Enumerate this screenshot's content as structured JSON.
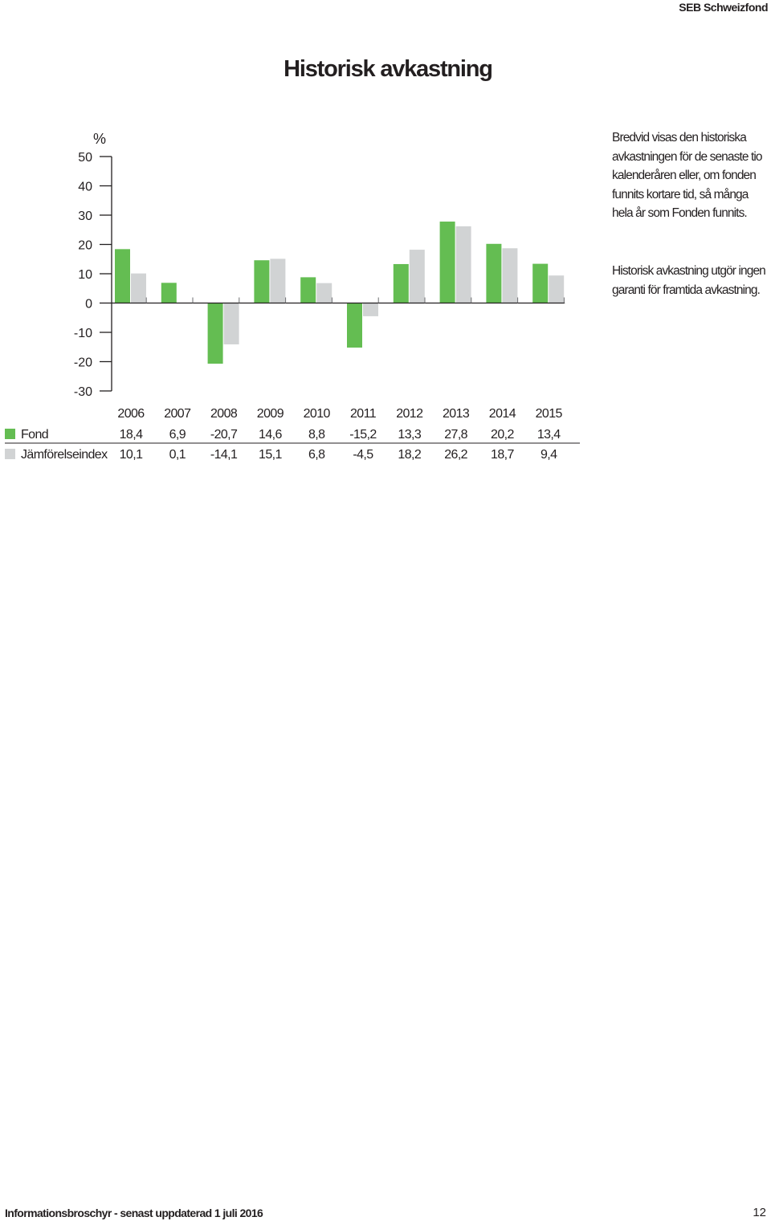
{
  "header": {
    "brand": "SEB Schweizfond"
  },
  "title": "Historisk avkastning",
  "colors": {
    "fund": "#64bd52",
    "index": "#d1d3d4",
    "text": "#231f20",
    "axis": "#231f20"
  },
  "chart_data": {
    "type": "bar",
    "unit_label": "%",
    "categories": [
      "2006",
      "2007",
      "2008",
      "2009",
      "2010",
      "2011",
      "2012",
      "2013",
      "2014",
      "2015"
    ],
    "series": [
      {
        "name": "Fond",
        "values": [
          18.4,
          6.9,
          -20.7,
          14.6,
          8.8,
          -15.2,
          13.3,
          27.8,
          20.2,
          13.4
        ],
        "labels": [
          "18,4",
          "6,9",
          "-20,7",
          "14,6",
          "8,8",
          "-15,2",
          "13,3",
          "27,8",
          "20,2",
          "13,4"
        ]
      },
      {
        "name": "Jämförelseindex",
        "values": [
          10.1,
          0.1,
          -14.1,
          15.1,
          6.8,
          -4.5,
          18.2,
          26.2,
          18.7,
          9.4
        ],
        "labels": [
          "10,1",
          "0,1",
          "-14,1",
          "15,1",
          "6,8",
          "-4,5",
          "18,2",
          "26,2",
          "18,7",
          "9,4"
        ]
      }
    ],
    "yticks": [
      50,
      40,
      30,
      20,
      10,
      0,
      -10,
      -20,
      -30
    ],
    "ylim": [
      -30,
      50
    ],
    "legend_placement": "table-below"
  },
  "sidebar": {
    "paragraph1": "Bredvid visas den historiska avkastningen för de senaste tio kalenderåren eller, om fonden funnits kortare tid, så många hela år som Fonden funnits.",
    "paragraph2": "Historisk avkastning utgör ingen garanti för framtida avkastning."
  },
  "footer": {
    "left": "Informationsbroschyr - senast uppdaterad 1 juli 2016",
    "page_number": "12"
  }
}
